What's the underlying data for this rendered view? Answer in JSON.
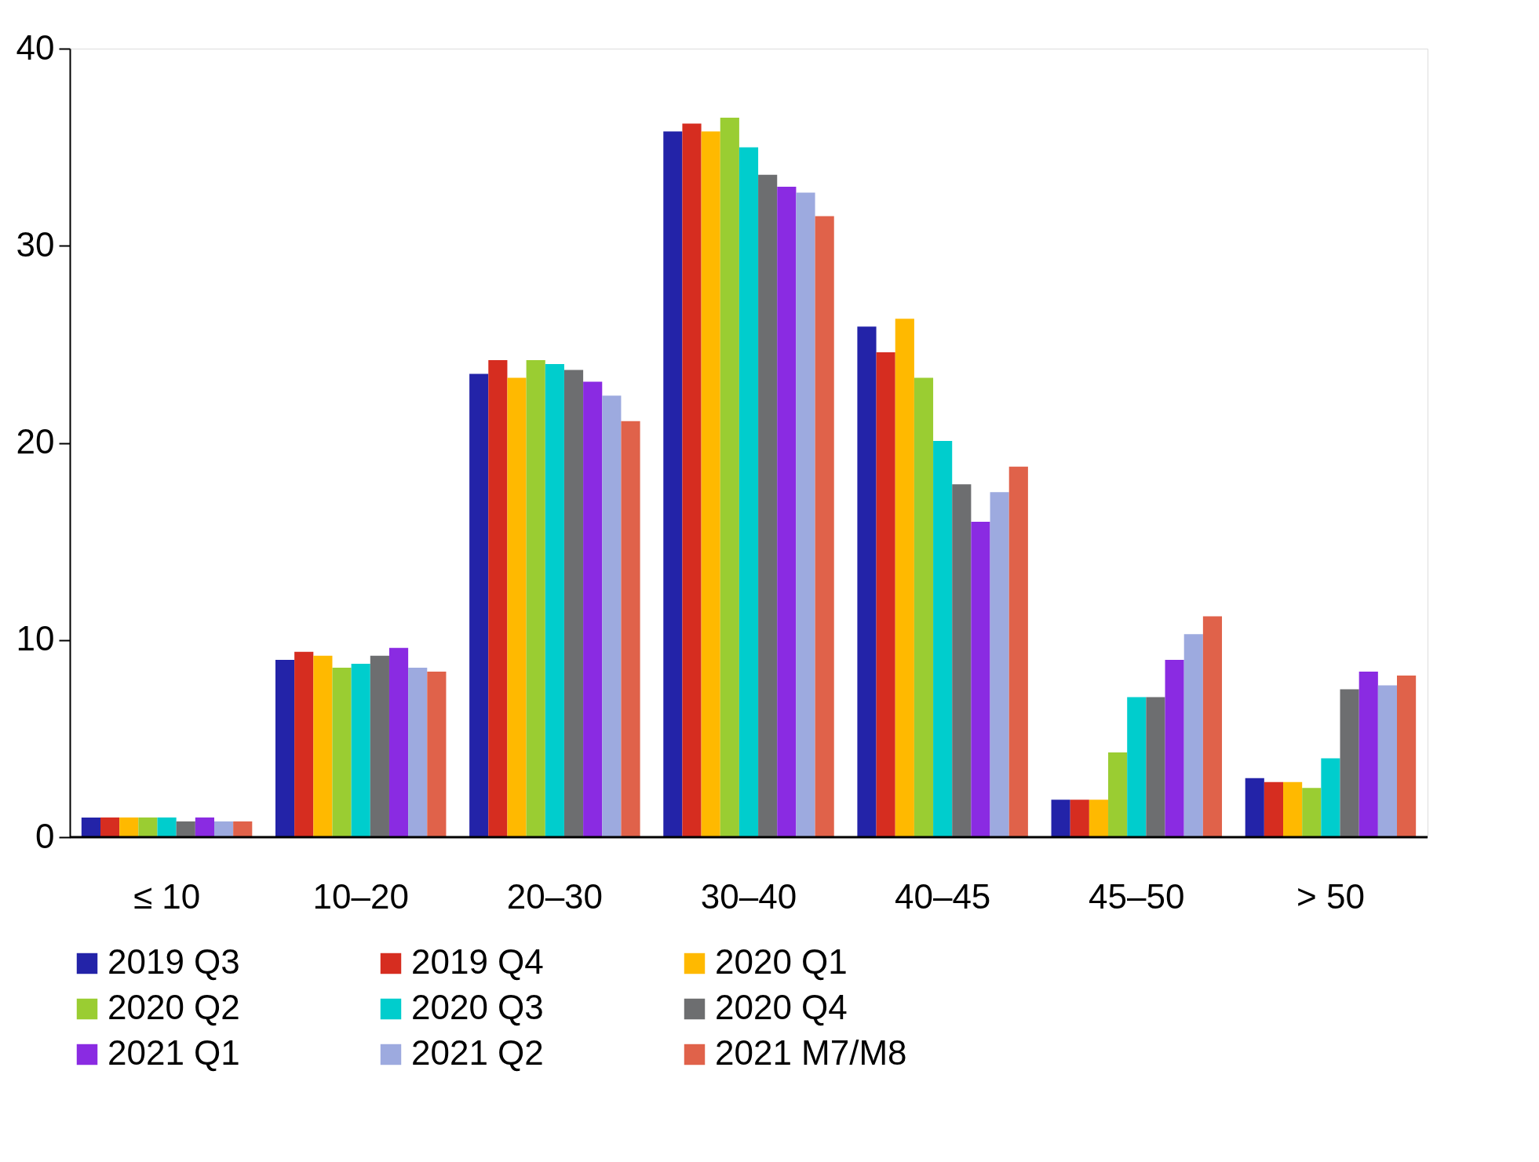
{
  "chart_data": {
    "type": "bar",
    "categories": [
      "≤ 10",
      "10–20",
      "20–30",
      "30–40",
      "40–45",
      "45–50",
      "> 50"
    ],
    "series": [
      {
        "name": "2019 Q3",
        "color": "#2323a8",
        "values": [
          1.0,
          9.0,
          23.5,
          35.8,
          25.9,
          1.9,
          3.0
        ]
      },
      {
        "name": "2019 Q4",
        "color": "#d62d20",
        "values": [
          1.0,
          9.4,
          24.2,
          36.2,
          24.6,
          1.9,
          2.8
        ]
      },
      {
        "name": "2020 Q1",
        "color": "#ffb900",
        "values": [
          1.0,
          9.2,
          23.3,
          35.8,
          26.3,
          1.9,
          2.8
        ]
      },
      {
        "name": "2020 Q2",
        "color": "#9acd32",
        "values": [
          1.0,
          8.6,
          24.2,
          36.5,
          23.3,
          4.3,
          2.5
        ]
      },
      {
        "name": "2020 Q3",
        "color": "#00cdcd",
        "values": [
          1.0,
          8.8,
          24.0,
          35.0,
          20.1,
          7.1,
          4.0
        ]
      },
      {
        "name": "2020 Q4",
        "color": "#6d6e70",
        "values": [
          0.8,
          9.2,
          23.7,
          33.6,
          17.9,
          7.1,
          7.5
        ]
      },
      {
        "name": "2021 Q1",
        "color": "#8a2be2",
        "values": [
          1.0,
          9.6,
          23.1,
          33.0,
          16.0,
          9.0,
          8.4
        ]
      },
      {
        "name": "2021 Q2",
        "color": "#9daadf",
        "values": [
          0.8,
          8.6,
          22.4,
          32.7,
          17.5,
          10.3,
          7.7
        ]
      },
      {
        "name": "2021 M7/M8",
        "color": "#e0624a",
        "values": [
          0.8,
          8.4,
          21.1,
          31.5,
          18.8,
          11.2,
          8.2
        ]
      }
    ],
    "ylim": [
      0,
      40
    ],
    "yticks": [
      0,
      10,
      20,
      30,
      40
    ],
    "grid": false,
    "legend": "bottom"
  }
}
